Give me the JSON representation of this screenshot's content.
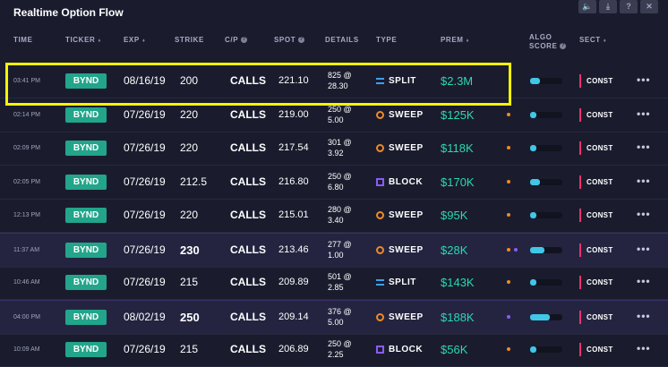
{
  "window": {
    "title": "Realtime Option Flow"
  },
  "toolbar": [
    {
      "icon": "volume-icon",
      "glyph": "🔈"
    },
    {
      "icon": "download-icon",
      "glyph": "⤓"
    },
    {
      "icon": "help-icon",
      "glyph": "?"
    },
    {
      "icon": "close-icon",
      "glyph": "✕"
    }
  ],
  "columns": {
    "time": "TIME",
    "ticker": "TICKER",
    "exp": "EXP",
    "strike": "STRIKE",
    "cp": "C/P",
    "spot": "SPOT",
    "details": "DETAILS",
    "type": "TYPE",
    "prem": "PREM",
    "algo_line1": "ALGO",
    "algo_line2": "SCORE",
    "sect": "SECT"
  },
  "colors": {
    "split": "#3fa0e8",
    "sweep": "#f08a24",
    "block": "#8a5cf5",
    "premium": "#2ad9b0",
    "ticker_bg": "#22a58a",
    "sect_mark": "#e8336a",
    "highlight": "#f5f500"
  },
  "rows": [
    {
      "time": "03:41 PM",
      "ticker": "BYND",
      "exp": "08/16/19",
      "strike": "200",
      "cp": "CALLS",
      "spot": "221.10",
      "details_line1": "825 @",
      "details_line2": "28.30",
      "type": "SPLIT",
      "prem": "$2.3M",
      "algo_score": 0.3,
      "sect": "CONST",
      "dots": [],
      "highlighted": true,
      "alt": false,
      "big_strike": false
    },
    {
      "time": "02:14 PM",
      "ticker": "BYND",
      "exp": "07/26/19",
      "strike": "220",
      "cp": "CALLS",
      "spot": "219.00",
      "details_line1": "250 @",
      "details_line2": "5.00",
      "type": "SWEEP",
      "prem": "$125K",
      "algo_score": 0.2,
      "sect": "CONST",
      "dots": [
        "#f08a24"
      ],
      "highlighted": false,
      "alt": false,
      "big_strike": false
    },
    {
      "time": "02:09 PM",
      "ticker": "BYND",
      "exp": "07/26/19",
      "strike": "220",
      "cp": "CALLS",
      "spot": "217.54",
      "details_line1": "301 @",
      "details_line2": "3.92",
      "type": "SWEEP",
      "prem": "$118K",
      "algo_score": 0.2,
      "sect": "CONST",
      "dots": [
        "#f08a24"
      ],
      "highlighted": false,
      "alt": false,
      "big_strike": false
    },
    {
      "time": "02:05 PM",
      "ticker": "BYND",
      "exp": "07/26/19",
      "strike": "212.5",
      "cp": "CALLS",
      "spot": "216.80",
      "details_line1": "250 @",
      "details_line2": "6.80",
      "type": "BLOCK",
      "prem": "$170K",
      "algo_score": 0.3,
      "sect": "CONST",
      "dots": [
        "#f08a24"
      ],
      "highlighted": false,
      "alt": false,
      "big_strike": false
    },
    {
      "time": "12:13 PM",
      "ticker": "BYND",
      "exp": "07/26/19",
      "strike": "220",
      "cp": "CALLS",
      "spot": "215.01",
      "details_line1": "280 @",
      "details_line2": "3.40",
      "type": "SWEEP",
      "prem": "$95K",
      "algo_score": 0.2,
      "sect": "CONST",
      "dots": [
        "#f08a24"
      ],
      "highlighted": false,
      "alt": false,
      "big_strike": false
    },
    {
      "time": "11:37 AM",
      "ticker": "BYND",
      "exp": "07/26/19",
      "strike": "230",
      "cp": "CALLS",
      "spot": "213.46",
      "details_line1": "277 @",
      "details_line2": "1.00",
      "type": "SWEEP",
      "prem": "$28K",
      "algo_score": 0.45,
      "sect": "CONST",
      "dots": [
        "#f08a24",
        "#8a5cf5"
      ],
      "highlighted": false,
      "alt": true,
      "big_strike": true
    },
    {
      "time": "10:46 AM",
      "ticker": "BYND",
      "exp": "07/26/19",
      "strike": "215",
      "cp": "CALLS",
      "spot": "209.89",
      "details_line1": "501 @",
      "details_line2": "2.85",
      "type": "SPLIT",
      "prem": "$143K",
      "algo_score": 0.2,
      "sect": "CONST",
      "dots": [
        "#f08a24"
      ],
      "highlighted": false,
      "alt": false,
      "big_strike": false
    },
    {
      "time": "04:00 PM",
      "ticker": "BYND",
      "exp": "08/02/19",
      "strike": "250",
      "cp": "CALLS",
      "spot": "209.14",
      "details_line1": "376 @",
      "details_line2": "5.00",
      "type": "SWEEP",
      "prem": "$188K",
      "algo_score": 0.6,
      "sect": "CONST",
      "dots": [
        "#8a5cf5"
      ],
      "highlighted": false,
      "alt": true,
      "big_strike": true
    },
    {
      "time": "10:09 AM",
      "ticker": "BYND",
      "exp": "07/26/19",
      "strike": "215",
      "cp": "CALLS",
      "spot": "206.89",
      "details_line1": "250 @",
      "details_line2": "2.25",
      "type": "BLOCK",
      "prem": "$56K",
      "algo_score": 0.2,
      "sect": "CONST",
      "dots": [
        "#f08a24"
      ],
      "highlighted": false,
      "alt": false,
      "big_strike": false
    }
  ],
  "more_glyph": "•••"
}
